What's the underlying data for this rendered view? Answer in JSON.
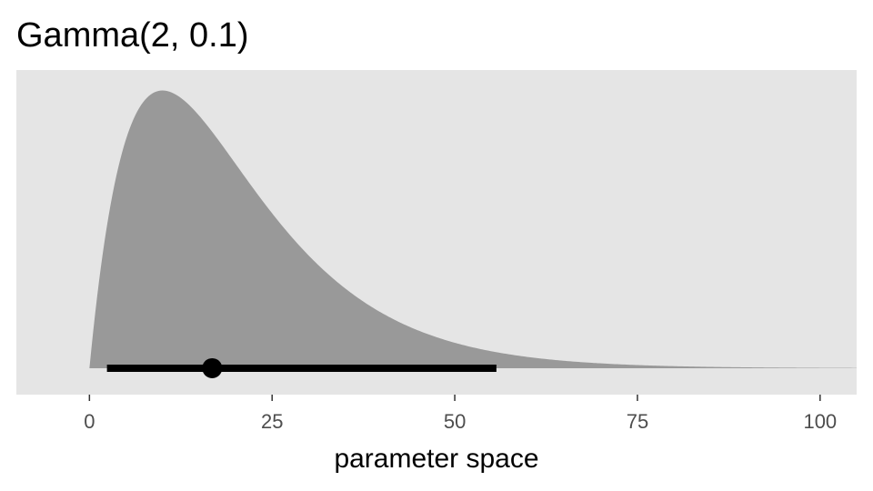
{
  "chart_data": {
    "type": "area",
    "title": "Gamma(2, 0.1)",
    "xlabel": "parameter space",
    "ylabel": "",
    "distribution": {
      "family": "Gamma",
      "shape": 2,
      "rate": 0.1
    },
    "xlim": [
      -10,
      105
    ],
    "ylim": [
      -0.0035,
      0.0395
    ],
    "x_ticks": [
      0,
      25,
      50,
      75,
      100
    ],
    "x_tick_labels": [
      "0",
      "25",
      "50",
      "75",
      "100"
    ],
    "grid": false,
    "legend": "none",
    "interval": {
      "low": 2.4,
      "high": 55.7,
      "point": 16.8
    },
    "colors": {
      "panel": "#e5e5e5",
      "density_fill": "#999999",
      "interval": "#000000",
      "point": "#000000",
      "tick": "#333333"
    }
  }
}
